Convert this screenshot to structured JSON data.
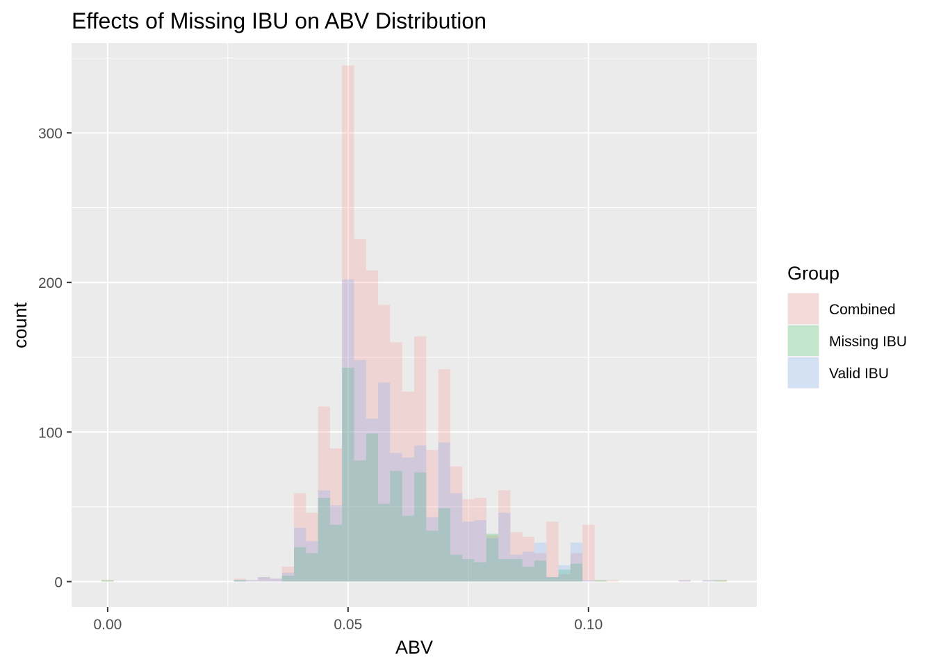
{
  "chart_data": {
    "type": "histogram",
    "title": "Effects of Missing IBU on ABV Distribution",
    "xlabel": "ABV",
    "ylabel": "count",
    "xlim": [
      -0.0075,
      0.135
    ],
    "ylim": [
      -17,
      360
    ],
    "x_ticks": [
      0.0,
      0.05,
      0.1
    ],
    "x_tick_labels": [
      "0.00",
      "0.05",
      "0.10"
    ],
    "y_ticks": [
      0,
      100,
      200,
      300
    ],
    "y_tick_labels": [
      "0",
      "100",
      "200",
      "300"
    ],
    "bin_width": 0.0025,
    "grid": true,
    "legend": {
      "title": "Group",
      "position": "right",
      "entries": [
        "Combined",
        "Missing IBU",
        "Valid IBU"
      ]
    },
    "x": [
      0.0,
      0.0025,
      0.005,
      0.0075,
      0.01,
      0.0125,
      0.015,
      0.0175,
      0.02,
      0.0225,
      0.025,
      0.0275,
      0.03,
      0.0325,
      0.035,
      0.0375,
      0.04,
      0.0425,
      0.045,
      0.0475,
      0.05,
      0.0525,
      0.055,
      0.0575,
      0.06,
      0.0625,
      0.065,
      0.0675,
      0.07,
      0.0725,
      0.075,
      0.0775,
      0.08,
      0.0825,
      0.085,
      0.0875,
      0.09,
      0.0925,
      0.095,
      0.0975,
      0.1,
      0.1025,
      0.105,
      0.1075,
      0.11,
      0.1125,
      0.115,
      0.1175,
      0.12,
      0.1225,
      0.125,
      0.1275
    ],
    "series": [
      {
        "name": "Combined",
        "color": "#f8766d",
        "values": [
          1,
          0,
          0,
          0,
          0,
          0,
          0,
          0,
          0,
          0,
          0,
          2,
          1,
          3,
          2,
          10,
          59,
          46,
          117,
          89,
          345,
          229,
          208,
          185,
          160,
          127,
          164,
          88,
          142,
          77,
          55,
          56,
          31,
          61,
          33,
          30,
          19,
          40,
          5,
          19,
          38,
          1,
          1,
          0,
          0,
          0,
          0,
          0,
          1,
          0,
          1,
          1
        ]
      },
      {
        "name": "Missing IBU",
        "color": "#00ba38",
        "values": [
          1,
          0,
          0,
          0,
          0,
          0,
          0,
          0,
          0,
          0,
          0,
          1,
          0,
          0,
          0,
          4,
          23,
          19,
          56,
          38,
          143,
          81,
          99,
          52,
          74,
          44,
          73,
          34,
          49,
          18,
          15,
          13,
          32,
          15,
          15,
          10,
          14,
          3,
          8,
          12,
          0,
          1,
          0,
          0,
          0,
          0,
          0,
          0,
          0,
          0,
          0,
          1
        ]
      },
      {
        "name": "Valid IBU",
        "color": "#619cff",
        "values": [
          0,
          0,
          0,
          0,
          0,
          0,
          0,
          0,
          0,
          0,
          0,
          1,
          1,
          3,
          2,
          6,
          36,
          27,
          61,
          51,
          202,
          148,
          109,
          133,
          86,
          83,
          91,
          43,
          93,
          59,
          40,
          41,
          29,
          46,
          18,
          20,
          26,
          3,
          11,
          26,
          1,
          0,
          0,
          0,
          0,
          0,
          0,
          0,
          1,
          0,
          1,
          0
        ]
      }
    ]
  }
}
